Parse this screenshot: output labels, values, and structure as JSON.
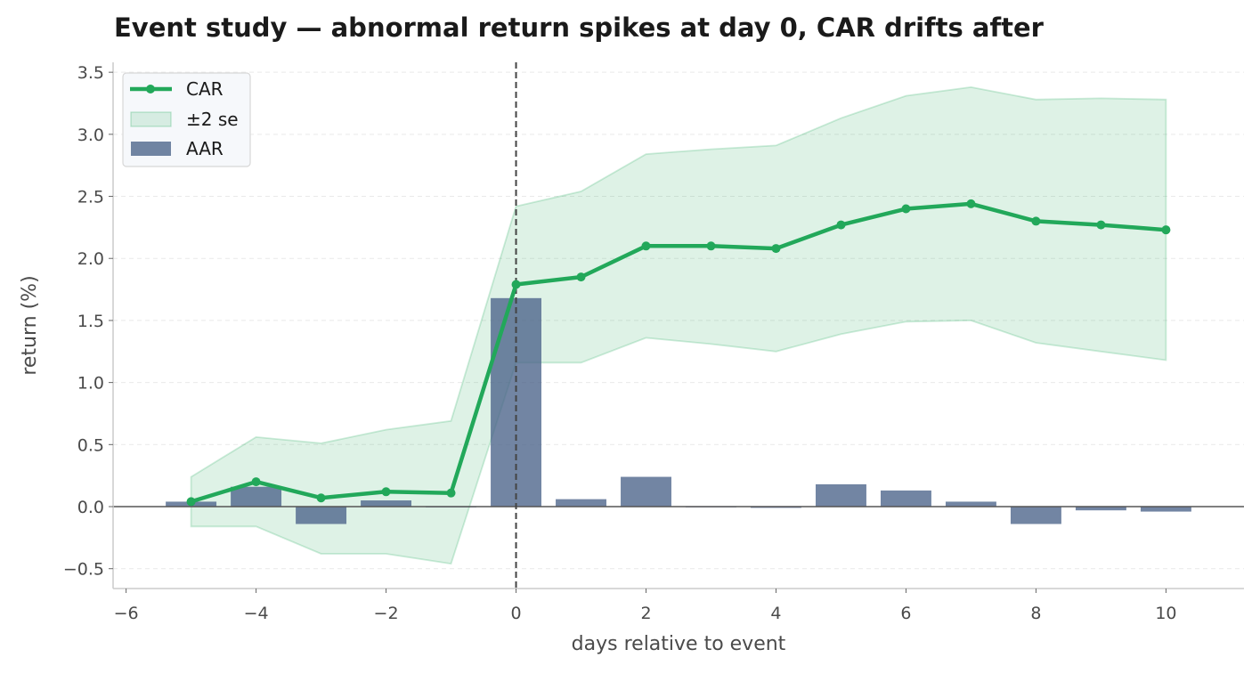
{
  "chart_data": {
    "type": "bar",
    "title": "Event study — abnormal return spikes at day 0, CAR drifts after",
    "xlabel": "days relative to event",
    "ylabel": "return (%)",
    "xlim": [
      -6.2,
      11.2
    ],
    "ylim": [
      -0.66,
      3.58
    ],
    "xticks": [
      -6,
      -4,
      -2,
      0,
      2,
      4,
      6,
      8,
      10
    ],
    "xtick_labels": [
      "−6",
      "−4",
      "−2",
      "0",
      "2",
      "4",
      "6",
      "8",
      "10"
    ],
    "yticks": [
      -0.5,
      0.0,
      0.5,
      1.0,
      1.5,
      2.0,
      2.5,
      3.0,
      3.5
    ],
    "ytick_labels": [
      "−0.5",
      "0.0",
      "0.5",
      "1.0",
      "1.5",
      "2.0",
      "2.5",
      "3.0",
      "3.5"
    ],
    "grid": "horizontal",
    "legend_position": "top-left",
    "event_day": 0,
    "x": [
      -5,
      -4,
      -3,
      -2,
      -1,
      0,
      1,
      2,
      3,
      4,
      5,
      6,
      7,
      8,
      9,
      10
    ],
    "series": [
      {
        "name": "CAR",
        "type": "line",
        "color": "#22a85a",
        "values": [
          0.04,
          0.2,
          0.07,
          0.12,
          0.11,
          1.79,
          1.85,
          2.1,
          2.1,
          2.08,
          2.27,
          2.4,
          2.44,
          2.3,
          2.27,
          2.23
        ]
      },
      {
        "name": "±2 se",
        "type": "band",
        "color": "#22a85a",
        "lower": [
          -0.16,
          -0.16,
          -0.38,
          -0.38,
          -0.46,
          1.16,
          1.16,
          1.36,
          1.31,
          1.25,
          1.39,
          1.49,
          1.5,
          1.32,
          1.25,
          1.18
        ],
        "upper": [
          0.24,
          0.56,
          0.51,
          0.62,
          0.69,
          2.42,
          2.54,
          2.84,
          2.88,
          2.91,
          3.13,
          3.31,
          3.38,
          3.28,
          3.29,
          3.28
        ]
      },
      {
        "name": "AAR",
        "type": "bar",
        "color": "#4a6389",
        "values": [
          0.04,
          0.16,
          -0.14,
          0.05,
          0.0,
          1.68,
          0.06,
          0.24,
          0.0,
          -0.01,
          0.18,
          0.13,
          0.04,
          -0.14,
          -0.03,
          -0.04
        ]
      }
    ]
  }
}
